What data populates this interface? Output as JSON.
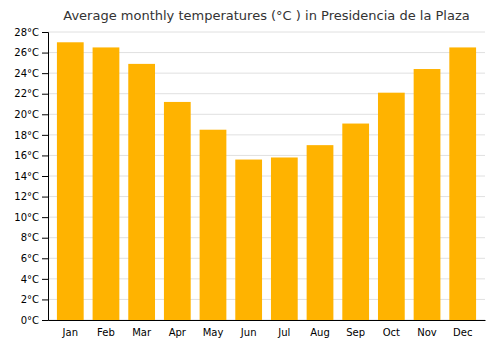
{
  "chart_data": {
    "type": "bar",
    "title": "Average monthly temperatures (°C ) in Presidencia de la Plaza",
    "categories": [
      "Jan",
      "Feb",
      "Mar",
      "Apr",
      "May",
      "Jun",
      "Jul",
      "Aug",
      "Sep",
      "Oct",
      "Nov",
      "Dec"
    ],
    "values": [
      27.0,
      26.5,
      24.9,
      21.2,
      18.5,
      15.6,
      15.8,
      17.0,
      19.1,
      22.1,
      24.4,
      26.5
    ],
    "color": "#FFB300",
    "ylim": [
      0,
      28
    ],
    "yticks": [
      {
        "value": 0,
        "label": "0°C"
      },
      {
        "value": 2,
        "label": "2°C"
      },
      {
        "value": 4,
        "label": "4°C"
      },
      {
        "value": 6,
        "label": "6°C"
      },
      {
        "value": 8,
        "label": "8°C"
      },
      {
        "value": 10,
        "label": "10°C"
      },
      {
        "value": 12,
        "label": "12°C"
      },
      {
        "value": 14,
        "label": "14°C"
      },
      {
        "value": 16,
        "label": "16°C"
      },
      {
        "value": 18,
        "label": "18°C"
      },
      {
        "value": 20,
        "label": "20°C"
      },
      {
        "value": 22,
        "label": "22°C"
      },
      {
        "value": 24,
        "label": "24°C"
      },
      {
        "value": 26,
        "label": "26°C"
      },
      {
        "value": 28,
        "label": "28°C"
      }
    ],
    "grid": true
  }
}
